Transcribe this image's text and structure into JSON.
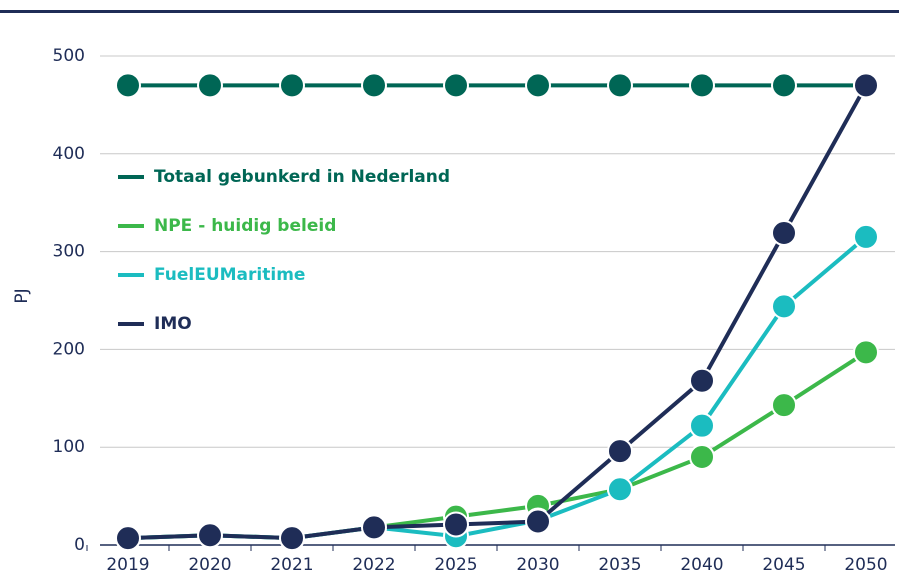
{
  "chart_data": {
    "type": "line",
    "y_label": "PJ",
    "categories": [
      "2019",
      "2020",
      "2021",
      "2022",
      "2025",
      "2030",
      "2035",
      "2040",
      "2045",
      "2050"
    ],
    "series": [
      {
        "name": "Totaal gebunkerd in Nederland",
        "color": "#006655",
        "values": [
          470,
          470,
          470,
          470,
          470,
          470,
          470,
          470,
          470,
          470
        ]
      },
      {
        "name": "NPE - huidig beleid",
        "color": "#3cb84a",
        "values": [
          7,
          10,
          7,
          18,
          29,
          40,
          57,
          90,
          143,
          197
        ]
      },
      {
        "name": "FuelEUMaritime",
        "color": "#1bbcc0",
        "values": [
          7,
          10,
          7,
          18,
          9,
          25,
          57,
          122,
          244,
          315
        ]
      },
      {
        "name": "IMO",
        "color": "#1f2d57",
        "values": [
          7,
          10,
          7,
          18,
          21,
          24,
          96,
          168,
          319,
          470
        ]
      }
    ],
    "ylim": [
      0,
      500
    ],
    "yticks": [
      0,
      100,
      200,
      300,
      400,
      500
    ],
    "grid": true,
    "legend": "upper left"
  }
}
